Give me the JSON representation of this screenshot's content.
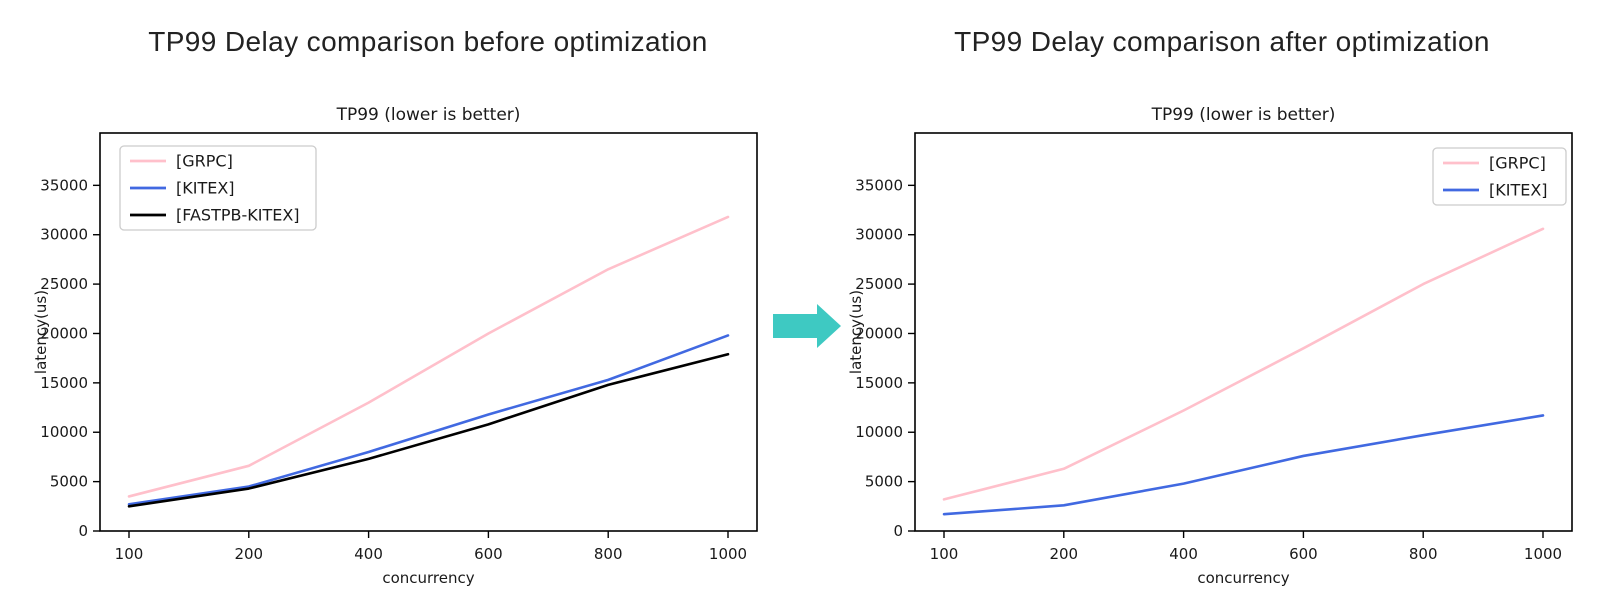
{
  "headings": {
    "before": "TP99 Delay comparison before optimization",
    "after": "TP99 Delay comparison after optimization"
  },
  "arrow": {
    "meaning": "before-transforms-to-after",
    "color": "#3ec9c2"
  },
  "chart_data": [
    {
      "id": "before",
      "type": "line",
      "title": "TP99 (lower is better)",
      "xlabel": "concurrency",
      "ylabel": "latency(us)",
      "categories": [
        "100",
        "200",
        "400",
        "600",
        "800",
        "1000"
      ],
      "yticks": [
        0,
        5000,
        10000,
        15000,
        20000,
        25000,
        30000,
        35000
      ],
      "ylim": [
        0,
        40300
      ],
      "grid": false,
      "legend_position": "upper-left",
      "frame_color": "#000000",
      "text_color": "#1a1a1a",
      "series": [
        {
          "name": "[GRPC]",
          "color": "#ffc0cb",
          "values": [
            3500,
            6600,
            13000,
            20000,
            26500,
            31800
          ]
        },
        {
          "name": "[KITEX]",
          "color": "#4169e1",
          "values": [
            2700,
            4500,
            8000,
            11800,
            15300,
            19800
          ]
        },
        {
          "name": "[FASTPB-KITEX]",
          "color": "#000000",
          "values": [
            2500,
            4300,
            7300,
            10800,
            14800,
            17900
          ]
        }
      ]
    },
    {
      "id": "after",
      "type": "line",
      "title": "TP99 (lower is better)",
      "xlabel": "concurrency",
      "ylabel": "latency(us)",
      "categories": [
        "100",
        "200",
        "400",
        "600",
        "800",
        "1000"
      ],
      "yticks": [
        0,
        5000,
        10000,
        15000,
        20000,
        25000,
        30000,
        35000
      ],
      "ylim": [
        0,
        40300
      ],
      "grid": false,
      "legend_position": "upper-right",
      "frame_color": "#000000",
      "text_color": "#1a1a1a",
      "series": [
        {
          "name": "[GRPC]",
          "color": "#ffc0cb",
          "values": [
            3200,
            6300,
            12200,
            18500,
            25000,
            30600
          ]
        },
        {
          "name": "[KITEX]",
          "color": "#4169e1",
          "values": [
            1700,
            2600,
            4800,
            7600,
            9700,
            11700
          ]
        }
      ]
    }
  ]
}
